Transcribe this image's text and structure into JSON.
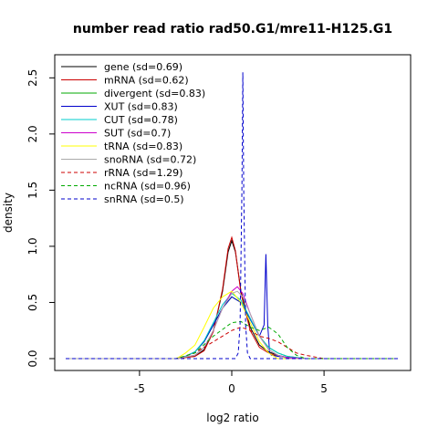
{
  "chart_data": {
    "type": "line",
    "title": "number read ratio rad50.G1/mre11-H125.G1",
    "xlabel": "log2 ratio",
    "ylabel": "density",
    "xlim": [
      -9,
      9
    ],
    "ylim": [
      0,
      2.6
    ],
    "x_ticks": [
      -5,
      0,
      5
    ],
    "y_ticks": [
      0.0,
      0.5,
      1.0,
      1.5,
      2.0,
      2.5
    ],
    "x_tick_labels": [
      "-5",
      "0",
      "5"
    ],
    "y_tick_labels": [
      "0.0",
      "0.5",
      "1.0",
      "1.5",
      "2.0",
      "2.5"
    ],
    "grid": false,
    "legend_position": "top-left",
    "series": [
      {
        "name": "gene (sd=0.69)",
        "color": "#000000",
        "dash": "solid",
        "x": [
          -9,
          -3,
          -2,
          -1.5,
          -1,
          -0.5,
          -0.2,
          0,
          0.2,
          0.5,
          1,
          1.5,
          2,
          2.5,
          3,
          4,
          9
        ],
        "y": [
          0,
          0,
          0.02,
          0.08,
          0.25,
          0.6,
          0.95,
          1.05,
          0.95,
          0.6,
          0.28,
          0.12,
          0.06,
          0.03,
          0.01,
          0,
          0
        ]
      },
      {
        "name": "mRNA (sd=0.62)",
        "color": "#cc0000",
        "dash": "solid",
        "x": [
          -9,
          -3,
          -2,
          -1.5,
          -1,
          -0.5,
          -0.2,
          0,
          0.2,
          0.5,
          1,
          1.5,
          2,
          2.5,
          3,
          4,
          9
        ],
        "y": [
          0,
          0,
          0.02,
          0.07,
          0.24,
          0.62,
          0.98,
          1.08,
          0.96,
          0.58,
          0.25,
          0.1,
          0.05,
          0.02,
          0.01,
          0,
          0
        ]
      },
      {
        "name": "divergent (sd=0.83)",
        "color": "#00aa00",
        "dash": "solid",
        "x": [
          -9,
          -3,
          -2.5,
          -2,
          -1.5,
          -1,
          -0.5,
          0,
          0.5,
          1,
          1.5,
          2,
          2.5,
          3,
          4,
          9
        ],
        "y": [
          0,
          0,
          0.02,
          0.06,
          0.15,
          0.3,
          0.45,
          0.55,
          0.5,
          0.35,
          0.2,
          0.1,
          0.05,
          0.02,
          0,
          0
        ]
      },
      {
        "name": "XUT (sd=0.83)",
        "color": "#0000cc",
        "dash": "solid",
        "x": [
          -9,
          -3,
          -2.5,
          -2,
          -1.5,
          -1,
          -0.5,
          0,
          0.5,
          1,
          1.5,
          1.75,
          1.85,
          1.95,
          2.05,
          2.15,
          2.5,
          3,
          4,
          9
        ],
        "y": [
          0,
          0,
          0.02,
          0.06,
          0.15,
          0.3,
          0.45,
          0.55,
          0.5,
          0.35,
          0.2,
          0.3,
          0.93,
          0.3,
          0.05,
          0.03,
          0.02,
          0.01,
          0,
          0
        ]
      },
      {
        "name": "CUT (sd=0.78)",
        "color": "#00cccc",
        "dash": "solid",
        "x": [
          -9,
          -3,
          -2.5,
          -2,
          -1.5,
          -1,
          -0.5,
          0,
          0.5,
          1,
          1.5,
          2,
          2.5,
          3,
          4,
          9
        ],
        "y": [
          0,
          0,
          0.02,
          0.06,
          0.16,
          0.32,
          0.48,
          0.58,
          0.52,
          0.36,
          0.2,
          0.1,
          0.05,
          0.02,
          0,
          0
        ]
      },
      {
        "name": "SUT (sd=0.7)",
        "color": "#cc00cc",
        "dash": "solid",
        "x": [
          -9,
          -3,
          -2,
          -1.5,
          -1,
          -0.5,
          0,
          0.3,
          0.6,
          1,
          1.5,
          2,
          2.5,
          3,
          4,
          9
        ],
        "y": [
          0,
          0,
          0.03,
          0.1,
          0.25,
          0.45,
          0.6,
          0.64,
          0.58,
          0.4,
          0.2,
          0.08,
          0.03,
          0.01,
          0,
          0
        ]
      },
      {
        "name": "tRNA (sd=0.83)",
        "color": "#ffff00",
        "dash": "solid",
        "x": [
          -9,
          -3,
          -2.5,
          -2,
          -1.5,
          -1,
          -0.5,
          0,
          0.5,
          1,
          1.5,
          2,
          2.5,
          9
        ],
        "y": [
          0,
          0,
          0.05,
          0.12,
          0.28,
          0.45,
          0.55,
          0.6,
          0.5,
          0.32,
          0.15,
          0.05,
          0,
          0
        ]
      },
      {
        "name": "snoRNA (sd=0.72)",
        "color": "#aaaaaa",
        "dash": "solid",
        "x": [
          -9,
          -3,
          -2,
          -1.5,
          -1,
          -0.5,
          0,
          0.3,
          0.6,
          1,
          1.5,
          2,
          2.5,
          3,
          9
        ],
        "y": [
          0,
          0,
          0.03,
          0.1,
          0.25,
          0.45,
          0.58,
          0.6,
          0.55,
          0.4,
          0.2,
          0.08,
          0.03,
          0,
          0
        ]
      },
      {
        "name": "rRNA (sd=1.29)",
        "color": "#cc0000",
        "dash": "dashed",
        "x": [
          -9,
          -3,
          -2,
          -1,
          0,
          0.5,
          1,
          1.5,
          2,
          2.5,
          3,
          3.5,
          4,
          5,
          9
        ],
        "y": [
          0,
          0,
          0.05,
          0.15,
          0.25,
          0.28,
          0.25,
          0.2,
          0.18,
          0.15,
          0.1,
          0.05,
          0.03,
          0,
          0
        ]
      },
      {
        "name": "ncRNA (sd=0.96)",
        "color": "#00aa00",
        "dash": "dashed",
        "x": [
          -9,
          -3,
          -2,
          -1,
          0,
          0.5,
          1,
          1.5,
          2,
          2.5,
          3,
          3.5,
          4,
          9
        ],
        "y": [
          0,
          0,
          0.05,
          0.2,
          0.32,
          0.33,
          0.28,
          0.25,
          0.28,
          0.22,
          0.1,
          0.03,
          0,
          0
        ]
      },
      {
        "name": "snRNA (sd=0.5)",
        "color": "#0000cc",
        "dash": "dashed",
        "x": [
          -9,
          0.2,
          0.35,
          0.45,
          0.55,
          0.6,
          0.65,
          0.75,
          0.85,
          1.0,
          9
        ],
        "y": [
          0,
          0,
          0.05,
          0.3,
          1.5,
          2.55,
          1.5,
          0.3,
          0.05,
          0,
          0
        ]
      }
    ]
  }
}
